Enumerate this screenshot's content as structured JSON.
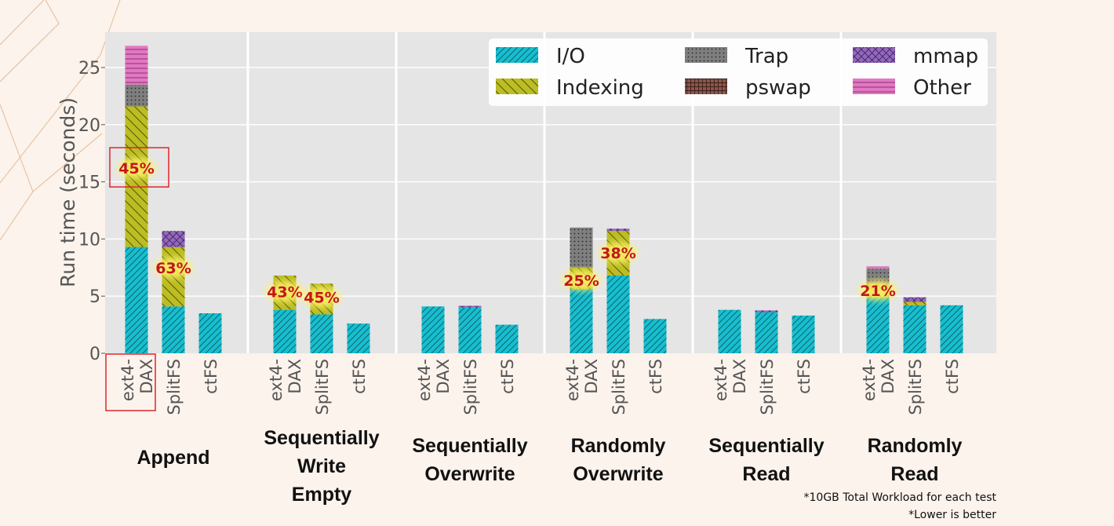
{
  "chart_data": {
    "type": "bar",
    "stacked": true,
    "ylabel": "Run time (seconds)",
    "ylim": [
      0,
      28
    ],
    "yticks": [
      0,
      5,
      10,
      15,
      20,
      25
    ],
    "grid": true,
    "legend_position": "top-right",
    "colors": {
      "I/O": "#17becf",
      "Indexing": "#bcbd22",
      "Trap": "#7f7f7f",
      "pswap": "#8c564b",
      "mmap": "#9467bd",
      "Other": "#e377c2"
    },
    "legend": [
      "I/O",
      "Trap",
      "mmap",
      "Indexing",
      "pswap",
      "Other"
    ],
    "series_order": [
      "I/O",
      "Indexing",
      "Trap",
      "pswap",
      "mmap",
      "Other"
    ],
    "groups": [
      {
        "name": "Append",
        "bars": [
          {
            "label": [
              "ext4-",
              "DAX"
            ],
            "values": {
              "I/O": 9.3,
              "Indexing": 12.3,
              "Trap": 1.9,
              "pswap": 0,
              "mmap": 0,
              "Other": 3.4
            },
            "highlight": true
          },
          {
            "label": [
              "SplitFS"
            ],
            "values": {
              "I/O": 4.1,
              "Indexing": 5.2,
              "Trap": 0,
              "pswap": 0,
              "mmap": 1.4,
              "Other": 0
            }
          },
          {
            "label": [
              "ctFS"
            ],
            "values": {
              "I/O": 3.5,
              "Indexing": 0,
              "Trap": 0,
              "pswap": 0,
              "mmap": 0,
              "Other": 0
            }
          }
        ],
        "annotations": [
          {
            "bar": 0,
            "y": 16.2,
            "text": "45%",
            "boxed": true
          },
          {
            "bar": 1,
            "y": 7.5,
            "text": "63%"
          }
        ]
      },
      {
        "name": "Sequentially Write Empty",
        "name_lines": [
          "Sequentially",
          "Write",
          "Empty"
        ],
        "bars": [
          {
            "label": [
              "ext4-",
              "DAX"
            ],
            "values": {
              "I/O": 3.8,
              "Indexing": 3.0,
              "Trap": 0,
              "pswap": 0,
              "mmap": 0,
              "Other": 0
            }
          },
          {
            "label": [
              "SplitFS"
            ],
            "values": {
              "I/O": 3.4,
              "Indexing": 2.7,
              "Trap": 0,
              "pswap": 0,
              "mmap": 0,
              "Other": 0
            }
          },
          {
            "label": [
              "ctFS"
            ],
            "values": {
              "I/O": 2.6,
              "Indexing": 0,
              "Trap": 0,
              "pswap": 0,
              "mmap": 0,
              "Other": 0
            }
          }
        ],
        "annotations": [
          {
            "bar": 0,
            "y": 5.4,
            "text": "43%"
          },
          {
            "bar": 1,
            "y": 4.9,
            "text": "45%"
          }
        ]
      },
      {
        "name": "Sequentially Overwrite",
        "name_lines": [
          "Sequentially",
          "Overwrite"
        ],
        "bars": [
          {
            "label": [
              "ext4-",
              "DAX"
            ],
            "values": {
              "I/O": 4.1,
              "Indexing": 0,
              "Trap": 0,
              "pswap": 0,
              "mmap": 0,
              "Other": 0
            }
          },
          {
            "label": [
              "SplitFS"
            ],
            "values": {
              "I/O": 4.0,
              "Indexing": 0,
              "Trap": 0,
              "pswap": 0,
              "mmap": 0.15,
              "Other": 0
            }
          },
          {
            "label": [
              "ctFS"
            ],
            "values": {
              "I/O": 2.5,
              "Indexing": 0,
              "Trap": 0,
              "pswap": 0,
              "mmap": 0,
              "Other": 0
            }
          }
        ],
        "annotations": []
      },
      {
        "name": "Randomly Overwrite",
        "name_lines": [
          "Randomly",
          "Overwrite"
        ],
        "bars": [
          {
            "label": [
              "ext4-",
              "DAX"
            ],
            "values": {
              "I/O": 5.6,
              "Indexing": 1.9,
              "Trap": 3.5,
              "pswap": 0,
              "mmap": 0,
              "Other": 0
            }
          },
          {
            "label": [
              "SplitFS"
            ],
            "values": {
              "I/O": 6.8,
              "Indexing": 3.9,
              "Trap": 0,
              "pswap": 0,
              "mmap": 0.2,
              "Other": 0
            }
          },
          {
            "label": [
              "ctFS"
            ],
            "values": {
              "I/O": 3.0,
              "Indexing": 0,
              "Trap": 0,
              "pswap": 0,
              "mmap": 0,
              "Other": 0
            }
          }
        ],
        "annotations": [
          {
            "bar": 0,
            "y": 6.4,
            "text": "25%"
          },
          {
            "bar": 1,
            "y": 8.8,
            "text": "38%"
          }
        ]
      },
      {
        "name": "Sequentially Read",
        "name_lines": [
          "Sequentially",
          "Read"
        ],
        "bars": [
          {
            "label": [
              "ext4-",
              "DAX"
            ],
            "values": {
              "I/O": 3.8,
              "Indexing": 0,
              "Trap": 0,
              "pswap": 0,
              "mmap": 0,
              "Other": 0
            }
          },
          {
            "label": [
              "SplitFS"
            ],
            "values": {
              "I/O": 3.6,
              "Indexing": 0,
              "Trap": 0,
              "pswap": 0,
              "mmap": 0.15,
              "Other": 0
            }
          },
          {
            "label": [
              "ctFS"
            ],
            "values": {
              "I/O": 3.3,
              "Indexing": 0,
              "Trap": 0,
              "pswap": 0,
              "mmap": 0,
              "Other": 0
            }
          }
        ],
        "annotations": []
      },
      {
        "name": "Randomly Read",
        "name_lines": [
          "Randomly",
          "Read"
        ],
        "bars": [
          {
            "label": [
              "ext4-",
              "DAX"
            ],
            "values": {
              "I/O": 4.9,
              "Indexing": 1.2,
              "Trap": 1.3,
              "pswap": 0,
              "mmap": 0,
              "Other": 0.2
            }
          },
          {
            "label": [
              "SplitFS"
            ],
            "values": {
              "I/O": 4.2,
              "Indexing": 0.3,
              "Trap": 0,
              "pswap": 0,
              "mmap": 0.4,
              "Other": 0
            }
          },
          {
            "label": [
              "ctFS"
            ],
            "values": {
              "I/O": 4.2,
              "Indexing": 0,
              "Trap": 0,
              "pswap": 0,
              "mmap": 0,
              "Other": 0
            }
          }
        ],
        "annotations": [
          {
            "bar": 0,
            "y": 5.5,
            "text": "21%"
          }
        ]
      }
    ]
  },
  "footnotes": [
    "*10GB Total Workload for each test",
    "*Lower is better"
  ]
}
